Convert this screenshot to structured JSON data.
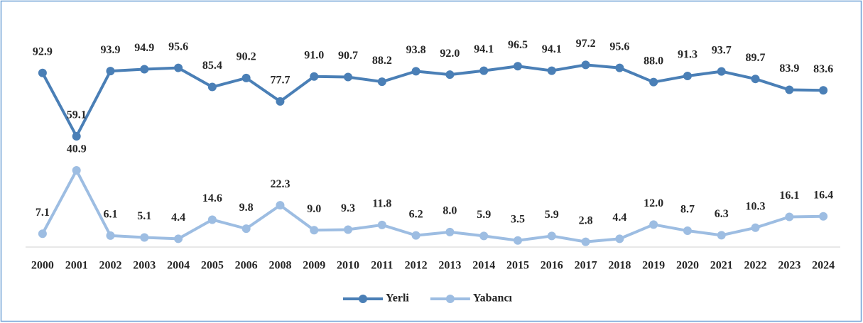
{
  "chart_data": {
    "type": "line",
    "categories": [
      "2000",
      "2001",
      "2002",
      "2003",
      "2004",
      "2005",
      "2006",
      "2008",
      "2009",
      "2010",
      "2011",
      "2012",
      "2013",
      "2014",
      "2015",
      "2016",
      "2017",
      "2018",
      "2019",
      "2020",
      "2021",
      "2022",
      "2023",
      "2024"
    ],
    "ylim": [
      0,
      100
    ],
    "legend": "bottom",
    "series": [
      {
        "name": "Yerli",
        "color": "#4a7fb6",
        "values": [
          92.9,
          59.1,
          93.9,
          94.9,
          95.6,
          85.4,
          90.2,
          77.7,
          91.0,
          90.7,
          88.2,
          93.8,
          92.0,
          94.1,
          96.5,
          94.1,
          97.2,
          95.6,
          88.0,
          91.3,
          93.7,
          89.7,
          83.9,
          83.6
        ],
        "value_labels": [
          "92.9",
          "59.1",
          "93.9",
          "94.9",
          "95.6",
          "85.4",
          "90.2",
          "77.7",
          "91.0",
          "90.7",
          "88.2",
          "93.8",
          "92.0",
          "94.1",
          "96.5",
          "94.1",
          "97.2",
          "95.6",
          "88.0",
          "91.3",
          "93.7",
          "89.7",
          "83.9",
          "83.6"
        ]
      },
      {
        "name": "Yabancı",
        "color": "#9dbde2",
        "values": [
          7.1,
          40.9,
          6.1,
          5.1,
          4.4,
          14.6,
          9.8,
          22.3,
          9.0,
          9.3,
          11.8,
          6.2,
          8.0,
          5.9,
          3.5,
          5.9,
          2.8,
          4.4,
          12.0,
          8.7,
          6.3,
          10.3,
          16.1,
          16.4
        ],
        "value_labels": [
          "7.1",
          "40.9",
          "6.1",
          "5.1",
          "4.4",
          "14.6",
          "9.8",
          "22.3",
          "9.0",
          "9.3",
          "11.8",
          "6.2",
          "8.0",
          "5.9",
          "3.5",
          "5.9",
          "2.8",
          "4.4",
          "12.0",
          "8.7",
          "6.3",
          "10.3",
          "16.1",
          "16.4"
        ]
      }
    ]
  }
}
